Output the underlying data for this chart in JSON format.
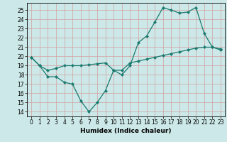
{
  "line1_x": [
    0,
    1,
    2,
    3,
    4,
    5,
    6,
    7,
    8,
    9,
    10,
    11,
    12,
    13,
    14,
    15,
    16,
    17,
    18,
    19,
    20,
    21,
    22,
    23
  ],
  "line1_y": [
    19.9,
    19.0,
    17.8,
    17.8,
    17.2,
    17.0,
    15.2,
    14.0,
    15.0,
    16.3,
    18.5,
    18.0,
    19.0,
    21.5,
    22.2,
    23.7,
    25.3,
    25.0,
    24.7,
    24.8,
    25.3,
    22.5,
    21.0,
    20.7
  ],
  "line2_x": [
    0,
    1,
    2,
    3,
    4,
    5,
    6,
    7,
    8,
    9,
    10,
    11,
    12,
    13,
    14,
    15,
    16,
    17,
    18,
    19,
    20,
    21,
    22,
    23
  ],
  "line2_y": [
    19.9,
    19.0,
    18.5,
    18.7,
    19.0,
    19.0,
    19.0,
    19.1,
    19.2,
    19.3,
    18.5,
    18.5,
    19.3,
    19.5,
    19.7,
    19.9,
    20.1,
    20.3,
    20.5,
    20.7,
    20.9,
    21.0,
    21.0,
    20.8
  ],
  "line_color": "#1a7a6e",
  "bg_color": "#cce8e8",
  "grid_color": "#d4a0a0",
  "xlabel": "Humidex (Indice chaleur)",
  "ylabel_ticks": [
    14,
    15,
    16,
    17,
    18,
    19,
    20,
    21,
    22,
    23,
    24,
    25
  ],
  "xlim": [
    -0.5,
    23.5
  ],
  "ylim": [
    13.5,
    25.8
  ],
  "xticks": [
    0,
    1,
    2,
    3,
    4,
    5,
    6,
    7,
    8,
    9,
    10,
    11,
    12,
    13,
    14,
    15,
    16,
    17,
    18,
    19,
    20,
    21,
    22,
    23
  ],
  "marker": "D",
  "markersize": 2.2,
  "linewidth": 0.9,
  "tick_fontsize": 5.5,
  "xlabel_fontsize": 6.5
}
